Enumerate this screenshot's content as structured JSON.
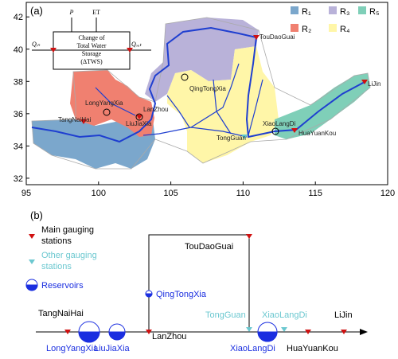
{
  "panel_a": {
    "label": "(a)",
    "xlim": [
      95,
      120
    ],
    "ylim": [
      31.6,
      42.9
    ],
    "xticks": [
      95,
      100,
      105,
      110,
      115,
      120
    ],
    "yticks": [
      32,
      34,
      36,
      38,
      40,
      42
    ],
    "budget": {
      "p": "P",
      "et": "ET",
      "q_in": "Qᵢₙ",
      "q_out": "Qₒᵤₜ",
      "box_lines": [
        "Change of",
        "Total Water",
        "Storage",
        "(ΔTWS)"
      ]
    },
    "legend": [
      {
        "name": "R₁",
        "color": "#7ba7cc"
      },
      {
        "name": "R₂",
        "color": "#f08070"
      },
      {
        "name": "R₃",
        "color": "#b9b2d9"
      },
      {
        "name": "R₄",
        "color": "#fff6a8"
      },
      {
        "name": "R₅",
        "color": "#7fcfb8"
      }
    ],
    "stations": [
      "TouDaoGuai",
      "QingTongXia",
      "LanZhou",
      "LongYangXia",
      "LiuJiaXia",
      "TangNaiHai",
      "TongGuan",
      "XiaoLangDi",
      "HuaYuanKou",
      "LiJin"
    ]
  },
  "panel_b": {
    "label": "(b)",
    "legend": {
      "main": [
        "Main gauging",
        "stations"
      ],
      "other": [
        "Other gauging",
        "stations"
      ],
      "reservoirs": "Reservoirs"
    },
    "stations": [
      "TangNaiHai",
      "LongYangXia",
      "LiuJiaXia",
      "LanZhou",
      "QingTongXia",
      "TouDaoGuai",
      "TongGuan",
      "XiaoLangDi",
      "XiaoLangDi",
      "HuaYuanKou",
      "LiJin"
    ]
  }
}
